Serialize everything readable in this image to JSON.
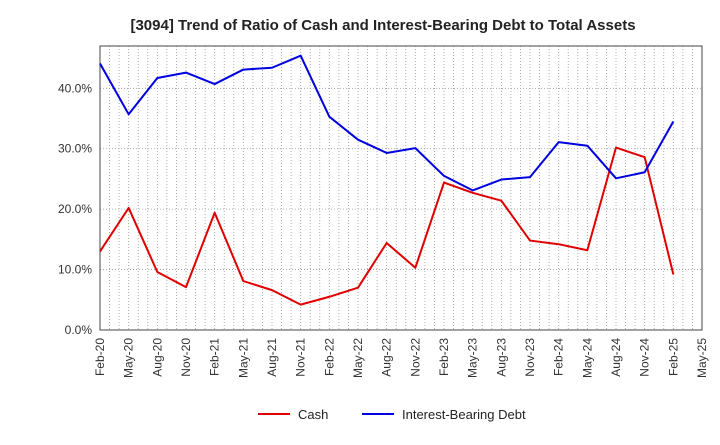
{
  "chart_data": {
    "type": "line",
    "title": "[3094]  Trend of Ratio of Cash and Interest-Bearing Debt to Total Assets",
    "xlabel": "",
    "ylabel": "",
    "x": [
      "Feb-20",
      "May-20",
      "Aug-20",
      "Nov-20",
      "Feb-21",
      "May-21",
      "Aug-21",
      "Nov-21",
      "Feb-22",
      "May-22",
      "Aug-22",
      "Nov-22",
      "Feb-23",
      "May-23",
      "Aug-23",
      "Nov-23",
      "Feb-24",
      "May-24",
      "Aug-24",
      "Nov-24",
      "Feb-25"
    ],
    "x_tick_labels": [
      "Feb-20",
      "May-20",
      "Aug-20",
      "Nov-20",
      "Feb-21",
      "May-21",
      "Aug-21",
      "Nov-21",
      "Feb-22",
      "May-22",
      "Aug-22",
      "Nov-22",
      "Feb-23",
      "May-23",
      "Aug-23",
      "Nov-23",
      "Feb-24",
      "May-24",
      "Aug-24",
      "Nov-24",
      "Feb-25",
      "May-25"
    ],
    "y_ticks": [
      0,
      10,
      20,
      30,
      40
    ],
    "y_tick_labels": [
      "0.0%",
      "10.0%",
      "20.0%",
      "30.0%",
      "40.0%"
    ],
    "ylim": [
      0,
      47
    ],
    "grid": true,
    "legend_position": "bottom",
    "series": [
      {
        "name": "Cash",
        "color": "#e00000",
        "values": [
          13.0,
          20.2,
          9.6,
          7.1,
          19.4,
          8.1,
          6.6,
          4.2,
          5.5,
          7.0,
          14.4,
          10.3,
          24.4,
          22.7,
          21.4,
          14.8,
          14.2,
          13.2,
          30.2,
          28.6,
          9.2
        ]
      },
      {
        "name": "Interest-Bearing Debt",
        "color": "#0000e0",
        "values": [
          44.1,
          35.7,
          41.7,
          42.6,
          40.7,
          43.1,
          43.4,
          45.4,
          35.3,
          31.5,
          29.3,
          30.1,
          25.5,
          23.1,
          24.9,
          25.3,
          31.1,
          30.5,
          25.1,
          26.1,
          34.5
        ]
      }
    ]
  }
}
